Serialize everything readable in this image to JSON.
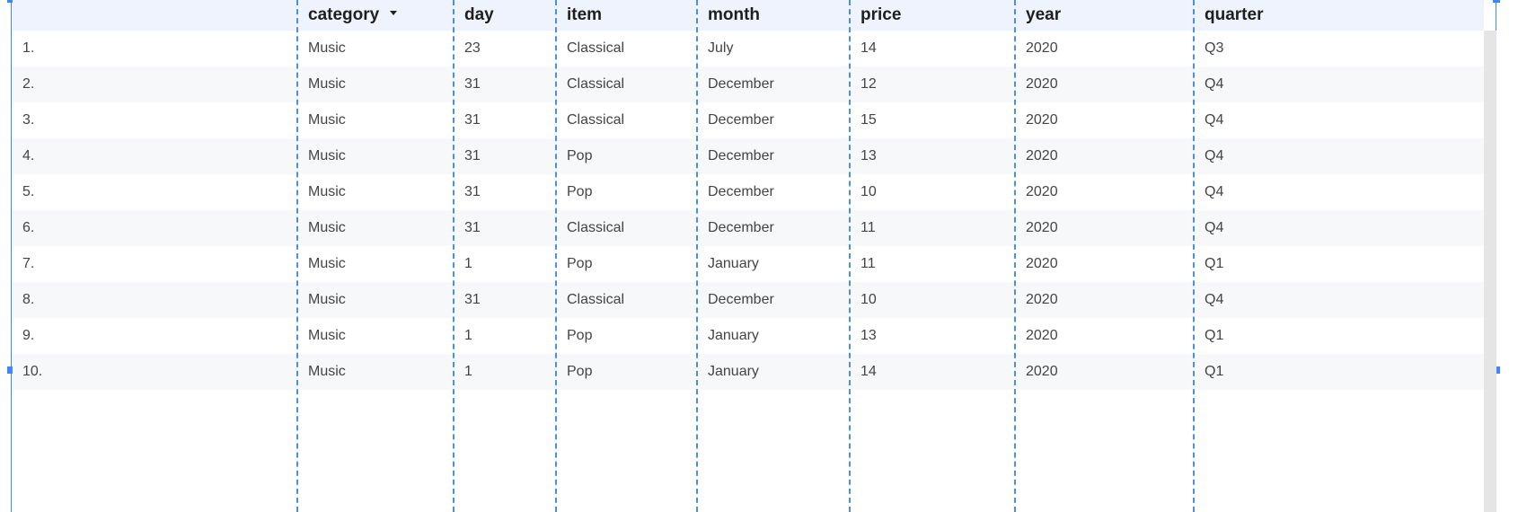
{
  "table": {
    "columns": [
      "",
      "category",
      "day",
      "item",
      "month",
      "price",
      "year",
      "quarter"
    ],
    "rows": [
      [
        "1.",
        "Music",
        "23",
        "Classical",
        "July",
        "14",
        "2020",
        "Q3"
      ],
      [
        "2.",
        "Music",
        "31",
        "Classical",
        "December",
        "12",
        "2020",
        "Q4"
      ],
      [
        "3.",
        "Music",
        "31",
        "Classical",
        "December",
        "15",
        "2020",
        "Q4"
      ],
      [
        "4.",
        "Music",
        "31",
        "Pop",
        "December",
        "13",
        "2020",
        "Q4"
      ],
      [
        "5.",
        "Music",
        "31",
        "Pop",
        "December",
        "10",
        "2020",
        "Q4"
      ],
      [
        "6.",
        "Music",
        "31",
        "Classical",
        "December",
        "11",
        "2020",
        "Q4"
      ],
      [
        "7.",
        "Music",
        "1",
        "Pop",
        "January",
        "11",
        "2020",
        "Q1"
      ],
      [
        "8.",
        "Music",
        "31",
        "Classical",
        "December",
        "10",
        "2020",
        "Q4"
      ],
      [
        "9.",
        "Music",
        "1",
        "Pop",
        "January",
        "13",
        "2020",
        "Q1"
      ],
      [
        "10.",
        "Music",
        "1",
        "Pop",
        "January",
        "14",
        "2020",
        "Q1"
      ]
    ],
    "sorted_column_icon": "sort-descending-icon"
  },
  "colors": {
    "selection": "#4285f4",
    "header_bg": "#eef3fd",
    "row_alt_bg": "#f7f8fa"
  }
}
